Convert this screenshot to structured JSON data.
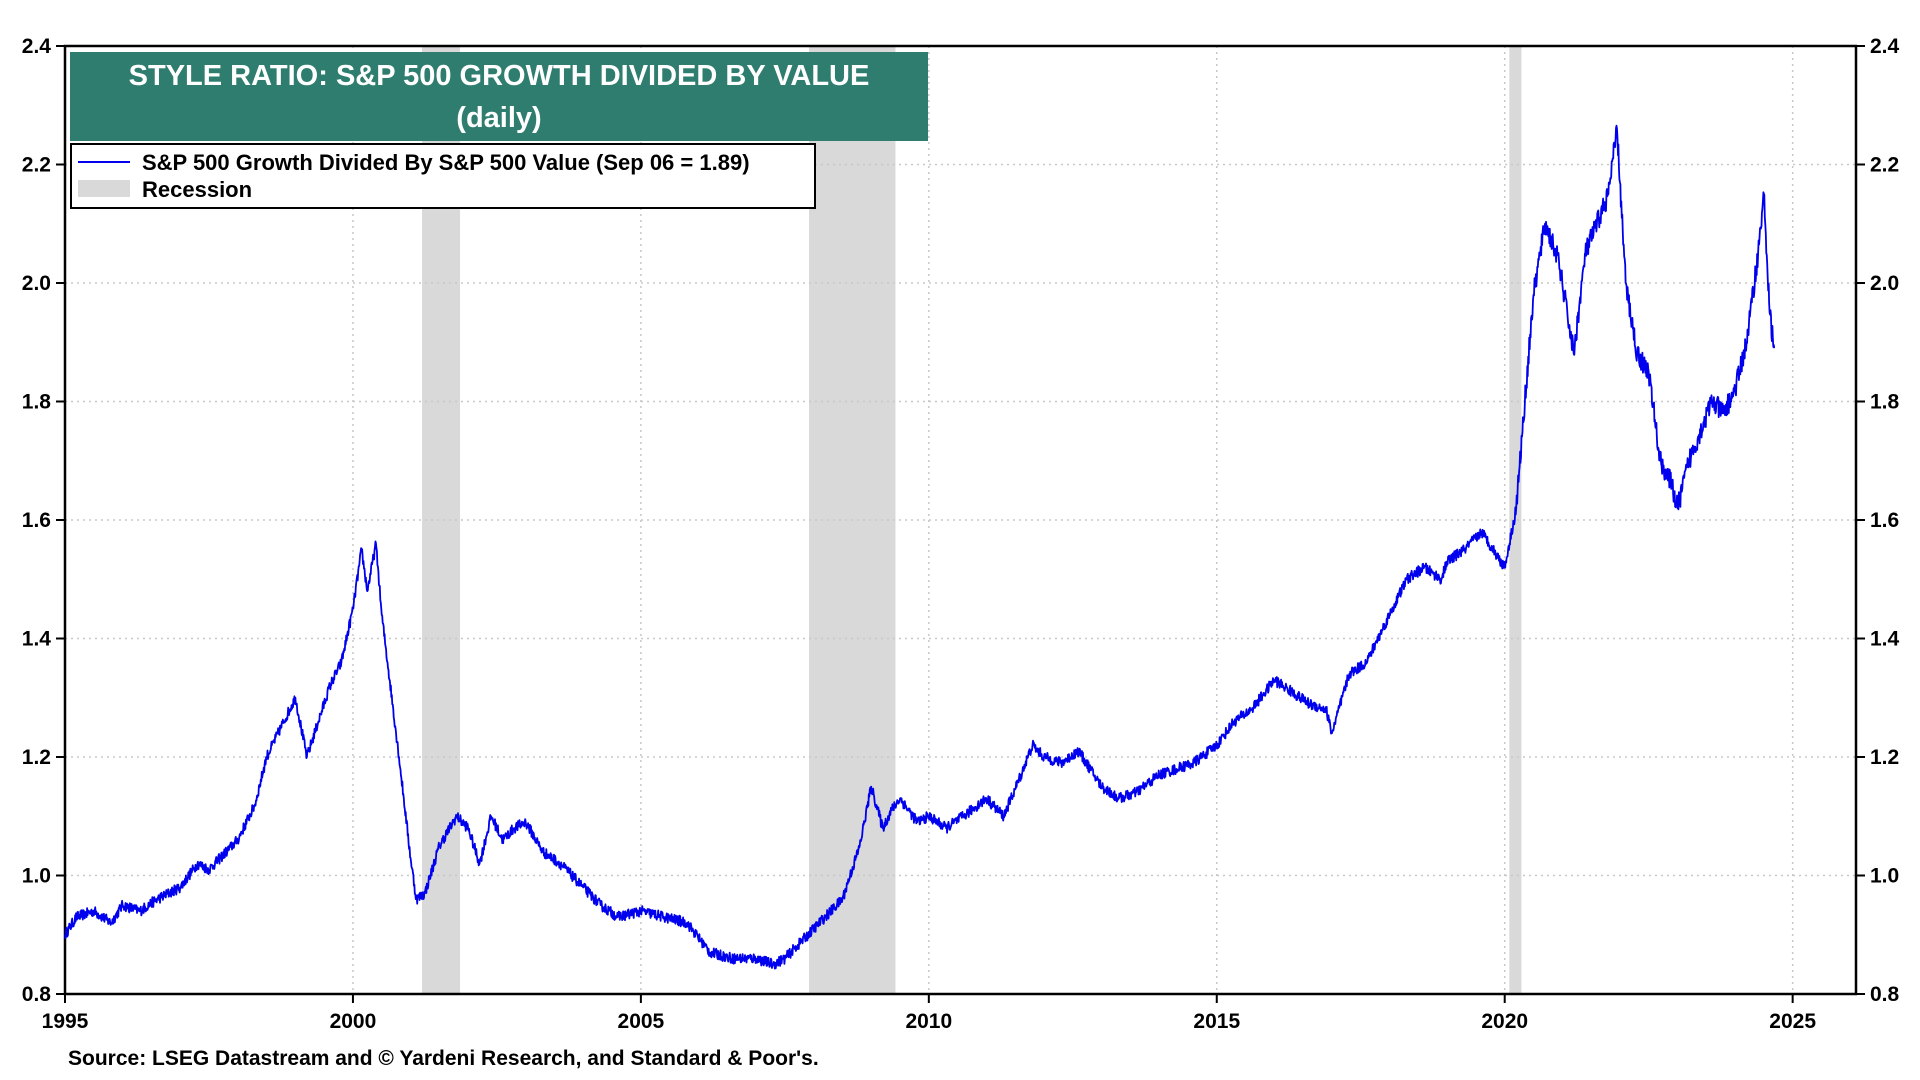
{
  "chart_data": {
    "type": "line",
    "title": "STYLE RATIO: S&P 500 GROWTH DIVIDED BY VALUE",
    "subtitle": "(daily)",
    "xlabel": "",
    "ylabel": "",
    "xlim": [
      1995,
      2026.1
    ],
    "ylim": [
      0.8,
      2.4
    ],
    "x_ticks": [
      1995,
      2000,
      2005,
      2010,
      2015,
      2020,
      2025
    ],
    "y_ticks": [
      0.8,
      1.0,
      1.2,
      1.4,
      1.6,
      1.8,
      2.0,
      2.2,
      2.4
    ],
    "y_tick_labels": [
      "0.8",
      "1.0",
      "1.2",
      "1.4",
      "1.6",
      "1.8",
      "2.0",
      "2.2",
      "2.4"
    ],
    "grid": true,
    "legend_position": "top-left",
    "series": [
      {
        "name": "S&P 500 Growth Divided By S&P 500 Value (Sep 06 = 1.89)",
        "color": "#0000ee",
        "x": [
          1995.0,
          1995.2,
          1995.5,
          1995.8,
          1996.0,
          1996.3,
          1996.6,
          1997.0,
          1997.3,
          1997.5,
          1997.8,
          1998.0,
          1998.3,
          1998.5,
          1998.8,
          1999.0,
          1999.2,
          1999.4,
          1999.6,
          1999.8,
          2000.0,
          2000.15,
          2000.25,
          2000.4,
          2000.5,
          2000.6,
          2000.8,
          2001.0,
          2001.1,
          2001.25,
          2001.5,
          2001.8,
          2002.0,
          2002.2,
          2002.4,
          2002.6,
          2002.8,
          2003.0,
          2003.3,
          2003.6,
          2004.0,
          2004.3,
          2004.6,
          2005.0,
          2005.4,
          2005.8,
          2006.2,
          2006.6,
          2007.0,
          2007.3,
          2007.5,
          2007.9,
          2008.2,
          2008.5,
          2008.8,
          2009.0,
          2009.2,
          2009.35,
          2009.5,
          2009.8,
          2010.0,
          2010.3,
          2010.6,
          2011.0,
          2011.3,
          2011.6,
          2011.8,
          2012.0,
          2012.3,
          2012.6,
          2013.0,
          2013.3,
          2013.6,
          2014.0,
          2014.3,
          2014.6,
          2015.0,
          2015.3,
          2015.6,
          2016.0,
          2016.3,
          2016.6,
          2016.9,
          2017.0,
          2017.3,
          2017.6,
          2018.0,
          2018.3,
          2018.6,
          2018.9,
          2019.0,
          2019.3,
          2019.6,
          2019.8,
          2020.0,
          2020.2,
          2020.35,
          2020.5,
          2020.7,
          2020.9,
          2021.0,
          2021.2,
          2021.4,
          2021.6,
          2021.8,
          2021.95,
          2022.1,
          2022.3,
          2022.5,
          2022.7,
          2022.9,
          2023.0,
          2023.2,
          2023.4,
          2023.6,
          2023.8,
          2024.0,
          2024.2,
          2024.4,
          2024.5,
          2024.6,
          2024.68
        ],
        "values": [
          0.9,
          0.93,
          0.94,
          0.92,
          0.95,
          0.94,
          0.96,
          0.98,
          1.02,
          1.01,
          1.04,
          1.06,
          1.12,
          1.2,
          1.26,
          1.3,
          1.2,
          1.26,
          1.32,
          1.36,
          1.45,
          1.55,
          1.48,
          1.56,
          1.44,
          1.36,
          1.2,
          1.03,
          0.96,
          0.97,
          1.05,
          1.1,
          1.08,
          1.02,
          1.1,
          1.06,
          1.08,
          1.09,
          1.04,
          1.02,
          0.98,
          0.95,
          0.93,
          0.94,
          0.93,
          0.92,
          0.87,
          0.86,
          0.86,
          0.85,
          0.86,
          0.9,
          0.93,
          0.96,
          1.05,
          1.15,
          1.08,
          1.11,
          1.13,
          1.09,
          1.1,
          1.08,
          1.1,
          1.13,
          1.1,
          1.17,
          1.22,
          1.2,
          1.19,
          1.21,
          1.15,
          1.13,
          1.14,
          1.17,
          1.18,
          1.19,
          1.22,
          1.26,
          1.28,
          1.33,
          1.31,
          1.29,
          1.28,
          1.24,
          1.34,
          1.36,
          1.44,
          1.5,
          1.52,
          1.5,
          1.53,
          1.55,
          1.58,
          1.55,
          1.52,
          1.62,
          1.8,
          1.98,
          2.1,
          2.05,
          2.0,
          1.88,
          2.05,
          2.1,
          2.15,
          2.26,
          2.0,
          1.88,
          1.85,
          1.7,
          1.66,
          1.62,
          1.7,
          1.75,
          1.8,
          1.78,
          1.82,
          1.9,
          2.05,
          2.15,
          1.95,
          1.89
        ]
      }
    ],
    "recessions": [
      [
        2001.2,
        2001.86
      ],
      [
        2007.92,
        2009.42
      ],
      [
        2020.08,
        2020.29
      ]
    ],
    "recession_color": "#d9d9d9",
    "line_color": "#0000ee",
    "title_bg": "#2e7d6f"
  },
  "legend": {
    "series_label": "S&P 500 Growth Divided By S&P 500 Value (Sep 06 = 1.89)",
    "recession_label": "Recession"
  },
  "source": "Source: LSEG Datastream and © Yardeni Research, and Standard & Poor's."
}
